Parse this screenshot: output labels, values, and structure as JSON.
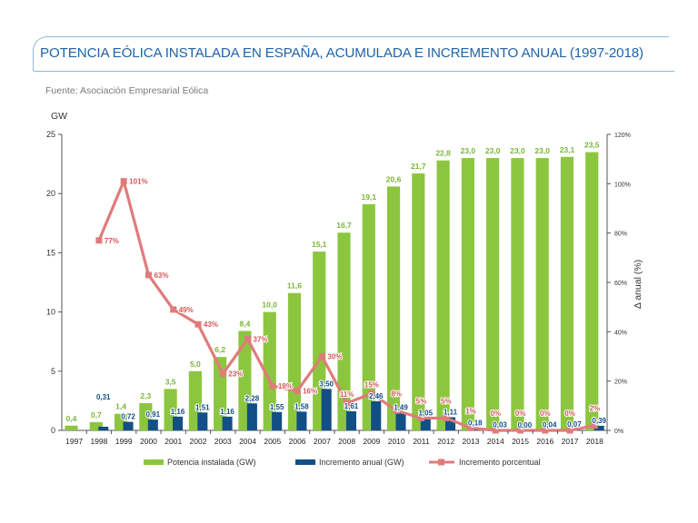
{
  "header": {
    "title": "POTENCIA EÓLICA INSTALADA EN ESPAÑA, ACUMULADA E INCREMENTO ANUAL (1997-2018)",
    "source": "Fuente: Asociación Empresarial Eólica"
  },
  "colors": {
    "installed": "#8cc63f",
    "annual": "#124f86",
    "percent": "#e07b7b",
    "title": "#1f63a6",
    "frame": "#8fb8d8"
  },
  "chart_data": {
    "type": "bar",
    "title": "POTENCIA EÓLICA INSTALADA EN ESPAÑA, ACUMULADA E INCREMENTO ANUAL (1997-2018)",
    "ylabel": "GW",
    "y2label": "Δ anual (%)",
    "ylim": [
      0,
      25
    ],
    "y2lim": [
      0,
      120
    ],
    "yticks": [
      0,
      5,
      10,
      15,
      20,
      25
    ],
    "y2ticks": [
      "0%",
      "20%",
      "40%",
      "60%",
      "80%",
      "100%",
      "120%"
    ],
    "grid": false,
    "legend_position": "bottom",
    "categories": [
      "1997",
      "1998",
      "1999",
      "2000",
      "2001",
      "2002",
      "2003",
      "2004",
      "2005",
      "2006",
      "2007",
      "2008",
      "2009",
      "2010",
      "2011",
      "2012",
      "2013",
      "2014",
      "2015",
      "2016",
      "2017",
      "2018"
    ],
    "series": [
      {
        "name": "Potencia instalada (GW)",
        "type": "bar",
        "axis": "left",
        "values": [
          0.4,
          0.7,
          1.4,
          2.3,
          3.5,
          5.0,
          6.2,
          8.4,
          10.0,
          11.6,
          15.1,
          16.7,
          19.1,
          20.6,
          21.7,
          22.8,
          23.0,
          23.0,
          23.0,
          23.0,
          23.1,
          23.5
        ],
        "labels": [
          "0,4",
          "0,7",
          "1,4",
          "2,3",
          "3,5",
          "5,0",
          "6,2",
          "8,4",
          "10,0",
          "11,6",
          "15,1",
          "16,7",
          "19,1",
          "20,6",
          "21,7",
          "22,8",
          "23,0",
          "23,0",
          "23,0",
          "23,0",
          "23,1",
          "23,5"
        ]
      },
      {
        "name": "Incremento anual (GW)",
        "type": "bar",
        "axis": "left",
        "values": [
          null,
          0.31,
          0.72,
          0.91,
          1.16,
          1.51,
          1.16,
          2.28,
          1.55,
          1.58,
          3.5,
          1.61,
          2.46,
          1.49,
          1.05,
          1.11,
          0.18,
          0.03,
          0.0,
          0.04,
          0.07,
          0.39
        ],
        "labels": [
          "",
          "0,31",
          "0,72",
          "0,91",
          "1,16",
          "1,51",
          "1,16",
          "2,28",
          "1,55",
          "1,58",
          "3,50",
          "1,61",
          "2,46",
          "1,49",
          "1,05",
          "1,11",
          "0,18",
          "0,03",
          "0,00",
          "0,04",
          "0,07",
          "0,39"
        ]
      },
      {
        "name": "Incremento porcentual",
        "type": "line",
        "axis": "right",
        "values": [
          null,
          77,
          101,
          63,
          49,
          43,
          23,
          37,
          18,
          16,
          30,
          11,
          15,
          8,
          5,
          5,
          1,
          0,
          0,
          0,
          0,
          2
        ],
        "labels": [
          "",
          "77%",
          "101%",
          "63%",
          "49%",
          "43%",
          "23%",
          "37%",
          "18%",
          "16%",
          "30%",
          "11%",
          "15%",
          "8%",
          "5%",
          "5%",
          "1%",
          "0%",
          "0%",
          "0%",
          "0%",
          "2%"
        ]
      }
    ]
  }
}
